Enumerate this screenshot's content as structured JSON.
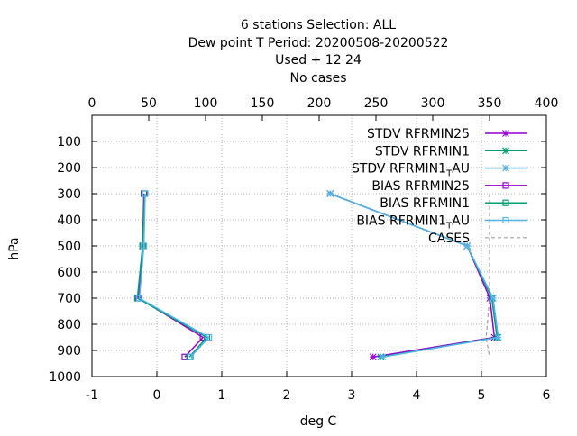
{
  "chart_data": {
    "type": "line",
    "title_lines": [
      "6 stations Selection: ALL",
      "Dew point T  Period: 20200508-20200522",
      "Used   + 12 24",
      "No cases"
    ],
    "xlabel": "deg C",
    "ylabel": "hPa",
    "xlim": [
      -1,
      6
    ],
    "x2lim": [
      0,
      400
    ],
    "ylim": [
      1000,
      0
    ],
    "x_ticks": [
      "-1",
      "0",
      "1",
      "2",
      "3",
      "4",
      "5",
      "6"
    ],
    "x2_ticks": [
      "0",
      "50",
      "100",
      "150",
      "200",
      "250",
      "300",
      "350",
      "400"
    ],
    "y_ticks": [
      "100",
      "200",
      "300",
      "400",
      "500",
      "600",
      "700",
      "800",
      "900",
      "1000"
    ],
    "grid": true,
    "legend_position": "top-right",
    "series": [
      {
        "name": "STDV RFRMIN25",
        "color": "#9400d3",
        "marker": "star",
        "points": [
          [
            2.67,
            300
          ],
          [
            4.78,
            500
          ],
          [
            5.13,
            700
          ],
          [
            5.2,
            850
          ],
          [
            3.33,
            925
          ]
        ]
      },
      {
        "name": "STDV RFRMIN1",
        "color": "#009e73",
        "marker": "star",
        "points": [
          [
            2.67,
            300
          ],
          [
            4.78,
            500
          ],
          [
            5.16,
            700
          ],
          [
            5.24,
            850
          ],
          [
            3.45,
            925
          ]
        ]
      },
      {
        "name": "STDV RFRMIN1_TAU",
        "color": "#56b4e9",
        "marker": "star",
        "points": [
          [
            2.67,
            300
          ],
          [
            4.78,
            500
          ],
          [
            5.18,
            700
          ],
          [
            5.26,
            850
          ],
          [
            3.48,
            925
          ]
        ]
      },
      {
        "name": "BIAS RFRMIN25",
        "color": "#9400d3",
        "marker": "square",
        "points": [
          [
            -0.2,
            300
          ],
          [
            -0.22,
            500
          ],
          [
            -0.28,
            700
          ],
          [
            0.71,
            850
          ],
          [
            0.43,
            925
          ]
        ]
      },
      {
        "name": "BIAS RFRMIN1",
        "color": "#009e73",
        "marker": "square",
        "points": [
          [
            -0.19,
            300
          ],
          [
            -0.22,
            500
          ],
          [
            -0.3,
            700
          ],
          [
            0.77,
            850
          ],
          [
            0.5,
            925
          ]
        ]
      },
      {
        "name": "BIAS RFRMIN1_TAU",
        "color": "#56b4e9",
        "marker": "square",
        "points": [
          [
            -0.18,
            300
          ],
          [
            -0.2,
            500
          ],
          [
            -0.27,
            700
          ],
          [
            0.8,
            850
          ],
          [
            0.52,
            925
          ]
        ]
      }
    ],
    "cases": {
      "name": "CASES",
      "color": "#a0a0a0",
      "x2_points": [
        [
          350,
          300
        ],
        [
          350,
          500
        ],
        [
          350,
          700
        ],
        [
          347,
          850
        ],
        [
          350,
          925
        ]
      ]
    }
  }
}
